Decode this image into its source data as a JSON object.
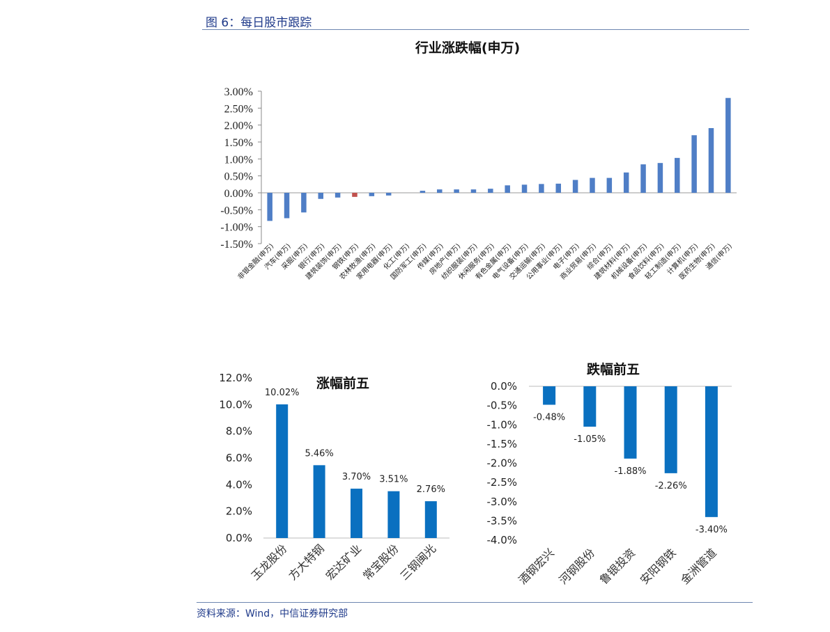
{
  "figure_title": "图 6：每日股市跟踪",
  "source": "资料来源：Wind，中信证券研究部",
  "chart_data": [
    {
      "type": "bar",
      "title": "行业涨跌幅(申万)",
      "ylim": [
        -1.5,
        3.0
      ],
      "yticks": [
        "3.00%",
        "2.50%",
        "2.00%",
        "1.50%",
        "1.00%",
        "0.50%",
        "0.00%",
        "-0.50%",
        "-1.00%",
        "-1.50%"
      ],
      "categories": [
        "非银金融(申万)",
        "汽车(申万)",
        "采掘(申万)",
        "银行(申万)",
        "建筑装饰(申万)",
        "钢铁(申万)",
        "农林牧渔(申万)",
        "家用电器(申万)",
        "化工(申万)",
        "国防军工(申万)",
        "传媒(申万)",
        "房地产(申万)",
        "纺织服装(申万)",
        "休闲服务(申万)",
        "有色金属(申万)",
        "电气设备(申万)",
        "交通运输(申万)",
        "公用事业(申万)",
        "电子(申万)",
        "商业贸易(申万)",
        "综合(申万)",
        "建筑材料(申万)",
        "机械设备(申万)",
        "食品饮料(申万)",
        "轻工制造(申万)",
        "计算机(申万)",
        "医药生物(申万)",
        "通信(申万)"
      ],
      "values": [
        -0.83,
        -0.75,
        -0.58,
        -0.18,
        -0.14,
        -0.12,
        -0.1,
        -0.08,
        0.0,
        0.06,
        0.1,
        0.1,
        0.1,
        0.12,
        0.22,
        0.24,
        0.26,
        0.27,
        0.38,
        0.44,
        0.44,
        0.6,
        0.84,
        0.88,
        1.03,
        1.7,
        1.91,
        2.8
      ],
      "bar_color": "#4f7ec6",
      "highlight_index": 5,
      "highlight_color": "#c0504d"
    },
    {
      "type": "bar",
      "title": "涨幅前五",
      "ylim": [
        0,
        12
      ],
      "yticks": [
        "12.0%",
        "10.0%",
        "8.0%",
        "6.0%",
        "4.0%",
        "2.0%",
        "0.0%"
      ],
      "categories": [
        "玉龙股份",
        "方大特钢",
        "宏达矿业",
        "常宝股份",
        "三钢闽光"
      ],
      "values": [
        10.02,
        5.46,
        3.7,
        3.51,
        2.76
      ],
      "labels": [
        "10.02%",
        "5.46%",
        "3.70%",
        "3.51%",
        "2.76%"
      ],
      "bar_color": "#0a70c0"
    },
    {
      "type": "bar",
      "title": "跌幅前五",
      "ylim": [
        -4.0,
        0.0
      ],
      "yticks": [
        "0.0%",
        "-0.5%",
        "-1.0%",
        "-1.5%",
        "-2.0%",
        "-2.5%",
        "-3.0%",
        "-3.5%",
        "-4.0%"
      ],
      "categories": [
        "酒钢宏兴",
        "河钢股份",
        "鲁银投资",
        "安阳钢铁",
        "金洲管道"
      ],
      "values": [
        -0.48,
        -1.05,
        -1.88,
        -2.26,
        -3.4
      ],
      "labels": [
        "-0.48%",
        "-1.05%",
        "-1.88%",
        "-2.26%",
        "-3.40%"
      ],
      "bar_color": "#0a70c0"
    }
  ]
}
